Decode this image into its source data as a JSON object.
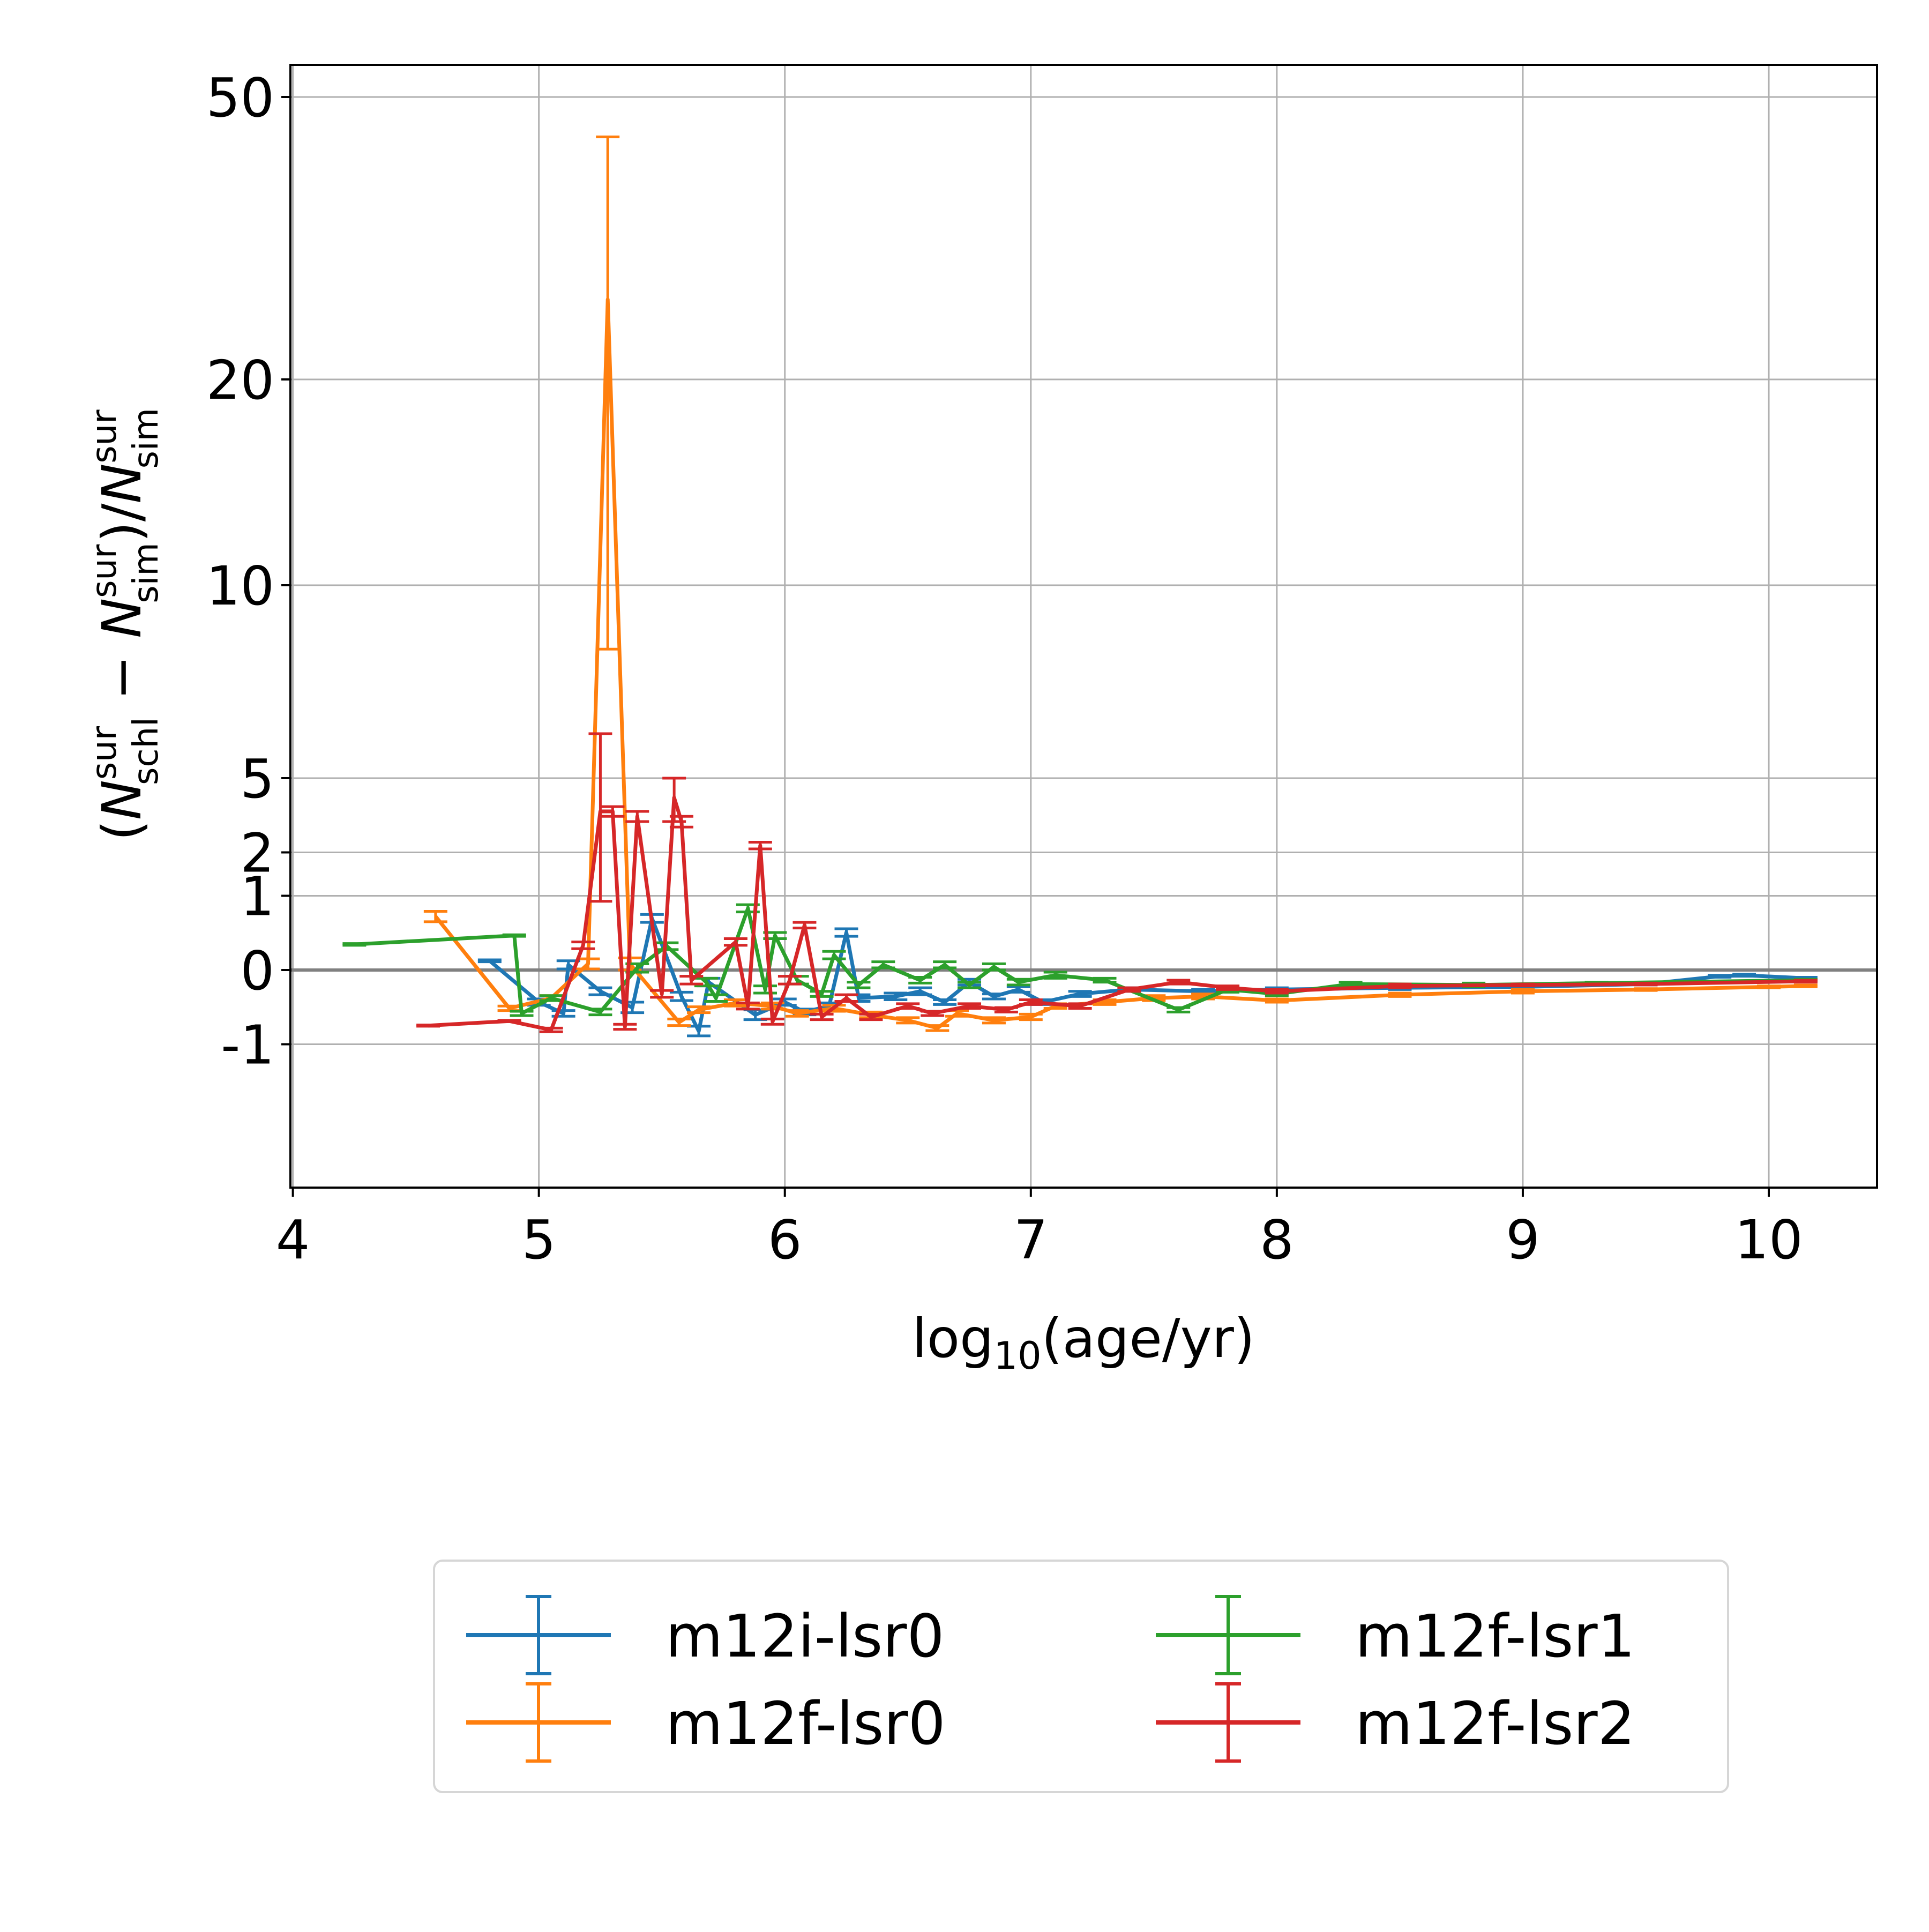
{
  "chart_data": {
    "type": "line",
    "title": "",
    "xlabel": "log10(age/yr)",
    "ylabel": "(N_schl^sur - N_sim^sur)/N_sim^sur",
    "xlim": [
      3.99,
      10.44
    ],
    "x_ticks": [
      "4",
      "5",
      "6",
      "7",
      "8",
      "9",
      "10"
    ],
    "y_ticks": [
      {
        "value": 50,
        "label": "50"
      },
      {
        "value": 20,
        "label": "20"
      },
      {
        "value": 10,
        "label": "10"
      },
      {
        "value": 5,
        "label": "5"
      },
      {
        "value": 2,
        "label": "2"
      },
      {
        "value": 1,
        "label": "1"
      },
      {
        "value": 0,
        "label": "0"
      },
      {
        "value": -1,
        "label": "-1"
      }
    ],
    "grid": true,
    "reference_line": 0,
    "legend_position": "below",
    "series": [
      {
        "name": "m12i-lsr0",
        "color": "#1f77b4",
        "points": [
          [
            4.8,
            0.09,
            0.01
          ],
          [
            5.0,
            -0.35,
            0.04
          ],
          [
            5.1,
            -0.5,
            0.04
          ],
          [
            5.12,
            0.05,
            0.04
          ],
          [
            5.25,
            -0.22,
            0.04
          ],
          [
            5.38,
            -0.42,
            0.07
          ],
          [
            5.46,
            0.62,
            0.06
          ],
          [
            5.58,
            -0.28,
            0.05
          ],
          [
            5.65,
            -0.77,
            0.08
          ],
          [
            5.69,
            -0.12,
            0.04
          ],
          [
            5.88,
            -0.52,
            0.07
          ],
          [
            6.0,
            -0.35,
            0.04
          ],
          [
            6.08,
            -0.48,
            0.04
          ],
          [
            6.18,
            -0.4,
            0.04
          ],
          [
            6.25,
            0.42,
            0.05
          ],
          [
            6.3,
            -0.3,
            0.04
          ],
          [
            6.45,
            -0.28,
            0.04
          ],
          [
            6.55,
            -0.22,
            0.04
          ],
          [
            6.65,
            -0.35,
            0.03
          ],
          [
            6.75,
            -0.12,
            0.03
          ],
          [
            6.85,
            -0.28,
            0.03
          ],
          [
            6.95,
            -0.2,
            0.03
          ],
          [
            7.05,
            -0.35,
            0.03
          ],
          [
            7.2,
            -0.25,
            0.03
          ],
          [
            7.4,
            -0.2,
            0.02
          ],
          [
            7.7,
            -0.22,
            0.02
          ],
          [
            8.0,
            -0.2,
            0.02
          ],
          [
            8.5,
            -0.18,
            0.02
          ],
          [
            9.0,
            -0.17,
            0.01
          ],
          [
            9.5,
            -0.14,
            0.01
          ],
          [
            9.8,
            -0.06,
            0.01
          ],
          [
            9.9,
            -0.05,
            0.01
          ],
          [
            10.15,
            -0.08,
            0.01
          ]
        ]
      },
      {
        "name": "m12f-lsr0",
        "color": "#ff7f0e",
        "points": [
          [
            4.58,
            0.65,
            0.08
          ],
          [
            4.88,
            -0.43,
            0.03
          ],
          [
            5.05,
            -0.3,
            0.03
          ],
          [
            5.2,
            0.06,
            0.05
          ],
          [
            5.28,
            26,
            18
          ],
          [
            5.37,
            0.06,
            0.06
          ],
          [
            5.57,
            -0.63,
            0.05
          ],
          [
            5.65,
            -0.45,
            0.04
          ],
          [
            5.8,
            -0.36,
            0.04
          ],
          [
            5.95,
            -0.4,
            0.04
          ],
          [
            6.05,
            -0.5,
            0.04
          ],
          [
            6.2,
            -0.43,
            0.04
          ],
          [
            6.35,
            -0.52,
            0.04
          ],
          [
            6.5,
            -0.6,
            0.04
          ],
          [
            6.62,
            -0.72,
            0.04
          ],
          [
            6.7,
            -0.5,
            0.04
          ],
          [
            6.85,
            -0.6,
            0.04
          ],
          [
            7.0,
            -0.55,
            0.04
          ],
          [
            7.1,
            -0.4,
            0.03
          ],
          [
            7.3,
            -0.35,
            0.03
          ],
          [
            7.5,
            -0.3,
            0.03
          ],
          [
            7.7,
            -0.28,
            0.03
          ],
          [
            8.0,
            -0.33,
            0.02
          ],
          [
            8.5,
            -0.26,
            0.02
          ],
          [
            9.0,
            -0.22,
            0.02
          ],
          [
            9.5,
            -0.2,
            0.01
          ],
          [
            10.0,
            -0.17,
            0.01
          ],
          [
            10.15,
            -0.16,
            0.01
          ]
        ]
      },
      {
        "name": "m12f-lsr1",
        "color": "#2ca02c",
        "points": [
          [
            4.25,
            0.27,
            0.01
          ],
          [
            4.9,
            0.38,
            0.01
          ],
          [
            4.93,
            -0.5,
            0.03
          ],
          [
            5.05,
            -0.3,
            0.03
          ],
          [
            5.25,
            -0.48,
            0.04
          ],
          [
            5.4,
            0.02,
            0.04
          ],
          [
            5.52,
            0.25,
            0.04
          ],
          [
            5.68,
            -0.12,
            0.04
          ],
          [
            5.72,
            -0.3,
            0.04
          ],
          [
            5.85,
            0.78,
            0.06
          ],
          [
            5.92,
            -0.2,
            0.04
          ],
          [
            5.96,
            0.38,
            0.04
          ],
          [
            6.05,
            -0.1,
            0.04
          ],
          [
            6.15,
            -0.25,
            0.03
          ],
          [
            6.2,
            0.15,
            0.04
          ],
          [
            6.3,
            -0.15,
            0.03
          ],
          [
            6.4,
            0.05,
            0.03
          ],
          [
            6.55,
            -0.1,
            0.03
          ],
          [
            6.65,
            0.05,
            0.03
          ],
          [
            6.75,
            -0.15,
            0.03
          ],
          [
            6.85,
            0.03,
            0.03
          ],
          [
            6.95,
            -0.12,
            0.03
          ],
          [
            7.1,
            -0.05,
            0.03
          ],
          [
            7.3,
            -0.1,
            0.02
          ],
          [
            7.6,
            -0.45,
            0.03
          ],
          [
            7.8,
            -0.2,
            0.03
          ],
          [
            8.0,
            -0.25,
            0.02
          ],
          [
            8.3,
            -0.14,
            0.02
          ],
          [
            8.8,
            -0.15,
            0.02
          ],
          [
            9.3,
            -0.13,
            0.01
          ],
          [
            10.15,
            -0.1,
            0.01
          ]
        ]
      },
      {
        "name": "m12f-lsr2",
        "color": "#d62728",
        "points": [
          [
            4.55,
            -0.68,
            0.01
          ],
          [
            4.88,
            -0.61,
            0.01
          ],
          [
            5.05,
            -0.75,
            0.03
          ],
          [
            5.18,
            0.26,
            0.04
          ],
          [
            5.25,
            3.4,
            2.5
          ],
          [
            5.3,
            3.4,
            0.2
          ],
          [
            5.35,
            -0.7,
            0.04
          ],
          [
            5.4,
            3.2,
            0.2
          ],
          [
            5.5,
            -0.25,
            0.04
          ],
          [
            5.55,
            4.0,
            1.0
          ],
          [
            5.58,
            3.0,
            0.2
          ],
          [
            5.62,
            -0.1,
            0.04
          ],
          [
            5.8,
            0.3,
            0.04
          ],
          [
            5.85,
            -0.4,
            0.04
          ],
          [
            5.9,
            2.2,
            0.1
          ],
          [
            5.95,
            -0.62,
            0.04
          ],
          [
            6.02,
            -0.1,
            0.04
          ],
          [
            6.08,
            0.52,
            0.04
          ],
          [
            6.15,
            -0.55,
            0.04
          ],
          [
            6.25,
            -0.3,
            0.04
          ],
          [
            6.35,
            -0.55,
            0.04
          ],
          [
            6.5,
            -0.4,
            0.03
          ],
          [
            6.6,
            -0.5,
            0.03
          ],
          [
            6.75,
            -0.4,
            0.03
          ],
          [
            6.9,
            -0.45,
            0.03
          ],
          [
            7.0,
            -0.35,
            0.03
          ],
          [
            7.2,
            -0.4,
            0.03
          ],
          [
            7.4,
            -0.2,
            0.02
          ],
          [
            7.6,
            -0.12,
            0.02
          ],
          [
            7.8,
            -0.18,
            0.02
          ],
          [
            8.0,
            -0.22,
            0.02
          ],
          [
            8.5,
            -0.16,
            0.02
          ],
          [
            9.0,
            -0.15,
            0.01
          ],
          [
            9.5,
            -0.14,
            0.01
          ],
          [
            10.15,
            -0.11,
            0.01
          ]
        ]
      }
    ]
  }
}
